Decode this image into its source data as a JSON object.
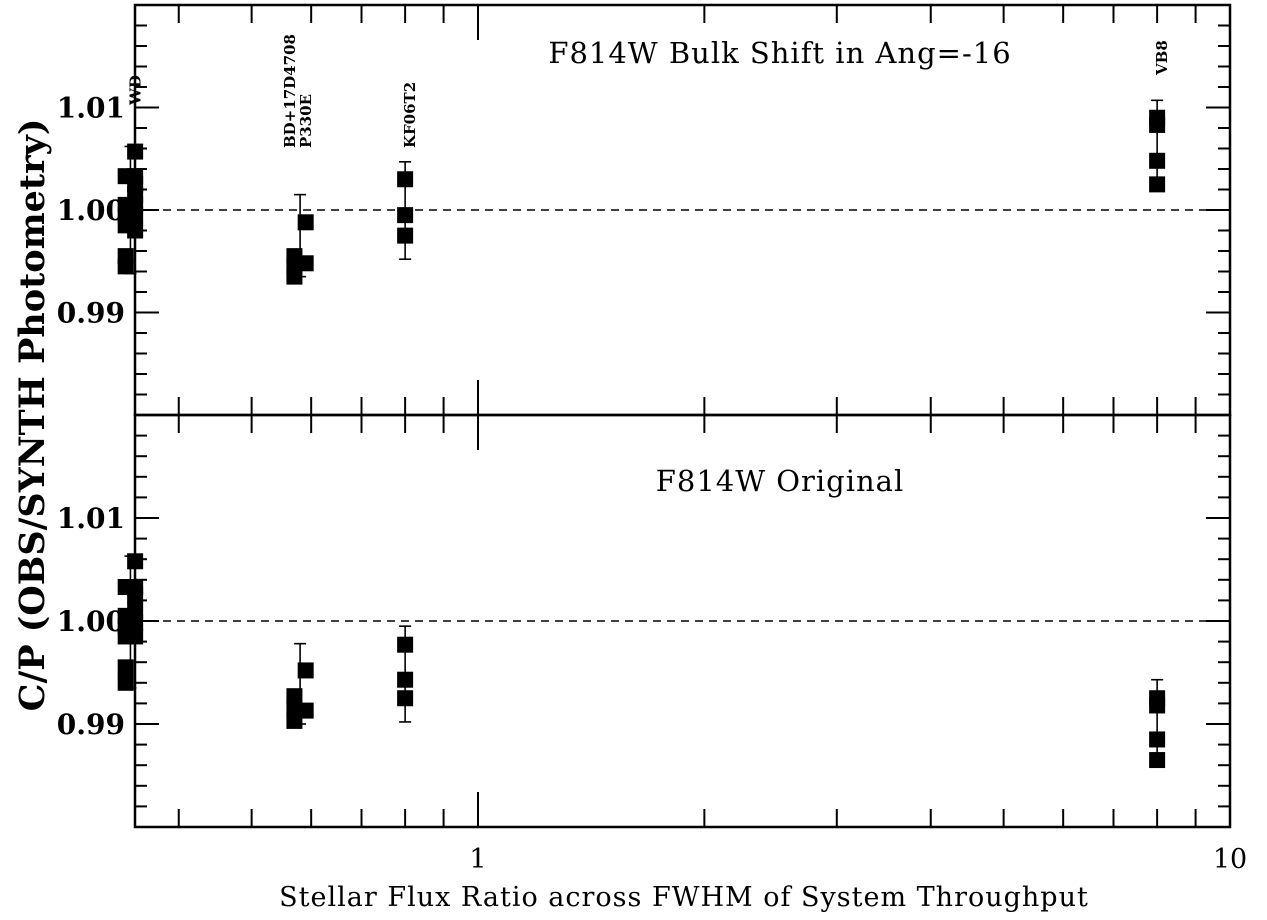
{
  "chart_data": [
    {
      "panel": "top",
      "type": "scatter",
      "title": "F814W Bulk Shift in Ang=-16",
      "xscale": "log",
      "xlim": [
        0.34,
        10
      ],
      "ylim": [
        0.98,
        1.02
      ],
      "yticks": [
        "0.99",
        "1.00",
        "1.01"
      ],
      "reference_line": 1.0,
      "groups": [
        {
          "label": "WD",
          "x": 0.345,
          "points": [
            {
              "x": 0.34,
              "y": 0.9945
            },
            {
              "x": 0.34,
              "y": 0.9955
            },
            {
              "x": 0.34,
              "y": 0.9985
            },
            {
              "x": 0.34,
              "y": 0.9995
            },
            {
              "x": 0.34,
              "y": 1.0005
            },
            {
              "x": 0.34,
              "y": 1.0033
            },
            {
              "x": 0.35,
              "y": 0.9995
            },
            {
              "x": 0.35,
              "y": 0.998
            },
            {
              "x": 0.35,
              "y": 1.0005
            },
            {
              "x": 0.35,
              "y": 1.0015
            },
            {
              "x": 0.35,
              "y": 1.0025
            },
            {
              "x": 0.35,
              "y": 1.0033
            },
            {
              "x": 0.35,
              "y": 1.0057
            }
          ],
          "errorbar": [
            0.9938,
            1.0062
          ]
        },
        {
          "label": "BD+17D4708",
          "label2": "P330E",
          "x": 0.58,
          "points": [
            {
              "x": 0.57,
              "y": 0.9935
            },
            {
              "x": 0.57,
              "y": 0.9945
            },
            {
              "x": 0.57,
              "y": 0.9955
            },
            {
              "x": 0.59,
              "y": 0.9948
            },
            {
              "x": 0.59,
              "y": 0.9988
            }
          ],
          "errorbar": [
            0.9935,
            1.0015
          ]
        },
        {
          "label": "KF06T2",
          "x": 0.8,
          "points": [
            {
              "x": 0.8,
              "y": 0.9975
            },
            {
              "x": 0.8,
              "y": 0.9995
            },
            {
              "x": 0.8,
              "y": 1.003
            }
          ],
          "errorbar": [
            0.9952,
            1.0047
          ]
        },
        {
          "label": "VB8",
          "x": 8.0,
          "points": [
            {
              "x": 8.0,
              "y": 1.0025
            },
            {
              "x": 8.0,
              "y": 1.0048
            },
            {
              "x": 8.0,
              "y": 1.0083
            },
            {
              "x": 8.0,
              "y": 1.009
            }
          ],
          "errorbar": [
            1.002,
            1.0107
          ]
        }
      ]
    },
    {
      "panel": "bottom",
      "type": "scatter",
      "title": "F814W Original",
      "xscale": "log",
      "xlim": [
        0.34,
        10
      ],
      "ylim": [
        0.98,
        1.02
      ],
      "yticks": [
        "0.99",
        "1.00",
        "1.01"
      ],
      "reference_line": 1.0,
      "groups": [
        {
          "x": 0.345,
          "points": [
            {
              "x": 0.34,
              "y": 0.994
            },
            {
              "x": 0.34,
              "y": 0.9955
            },
            {
              "x": 0.34,
              "y": 0.9985
            },
            {
              "x": 0.34,
              "y": 0.9995
            },
            {
              "x": 0.34,
              "y": 1.0005
            },
            {
              "x": 0.34,
              "y": 1.0033
            },
            {
              "x": 0.35,
              "y": 0.9985
            },
            {
              "x": 0.35,
              "y": 0.9998
            },
            {
              "x": 0.35,
              "y": 1.001
            },
            {
              "x": 0.35,
              "y": 1.0025
            },
            {
              "x": 0.35,
              "y": 1.0033
            },
            {
              "x": 0.35,
              "y": 1.0058
            }
          ],
          "errorbar": [
            0.9935,
            1.0063
          ]
        },
        {
          "x": 0.58,
          "points": [
            {
              "x": 0.57,
              "y": 0.9903
            },
            {
              "x": 0.57,
              "y": 0.9915
            },
            {
              "x": 0.57,
              "y": 0.9927
            },
            {
              "x": 0.59,
              "y": 0.9913
            },
            {
              "x": 0.59,
              "y": 0.9952
            }
          ],
          "errorbar": [
            0.99,
            0.9978
          ]
        },
        {
          "x": 0.8,
          "points": [
            {
              "x": 0.8,
              "y": 0.9925
            },
            {
              "x": 0.8,
              "y": 0.9943
            },
            {
              "x": 0.8,
              "y": 0.9977
            }
          ],
          "errorbar": [
            0.9902,
            0.9995
          ]
        },
        {
          "x": 8.0,
          "points": [
            {
              "x": 8.0,
              "y": 0.9865
            },
            {
              "x": 8.0,
              "y": 0.9885
            },
            {
              "x": 8.0,
              "y": 0.9918
            },
            {
              "x": 8.0,
              "y": 0.9925
            }
          ],
          "errorbar": [
            0.986,
            0.9943
          ]
        }
      ]
    }
  ],
  "shared": {
    "ylabel": "C/P (OBS/SYNTH Photometry)",
    "xlabel": "Stellar Flux Ratio across FWHM of System Throughput",
    "xtick_labels": [
      {
        "value": 1,
        "label": "1"
      },
      {
        "value": 10,
        "label": "10"
      }
    ]
  }
}
